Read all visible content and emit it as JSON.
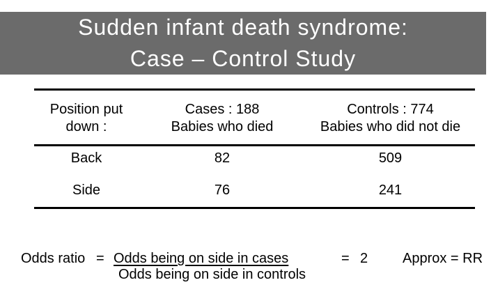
{
  "title": {
    "line1": "Sudden infant death syndrome:",
    "line2": "Case – Control Study"
  },
  "colors": {
    "title_band_bg": "#6b6b6b",
    "title_text": "#ffffff",
    "body_text": "#000000",
    "rule": "#000000"
  },
  "table": {
    "columns": [
      {
        "line1": "Position put",
        "line2": "down :"
      },
      {
        "line1": "Cases : 188",
        "line2": "Babies who died"
      },
      {
        "line1": "Controls : 774",
        "line2": "Babies who did not die"
      }
    ],
    "rows": [
      {
        "position": "Back",
        "cases": "82",
        "controls": "509"
      },
      {
        "position": "Side",
        "cases": "76",
        "controls": "241"
      }
    ]
  },
  "formula": {
    "label": "Odds ratio",
    "eq1": "=",
    "numerator": "Odds being on side in cases",
    "denominator": "Odds being on side in controls",
    "eq2": "=",
    "value": "2",
    "approx": "Approx = RR"
  }
}
